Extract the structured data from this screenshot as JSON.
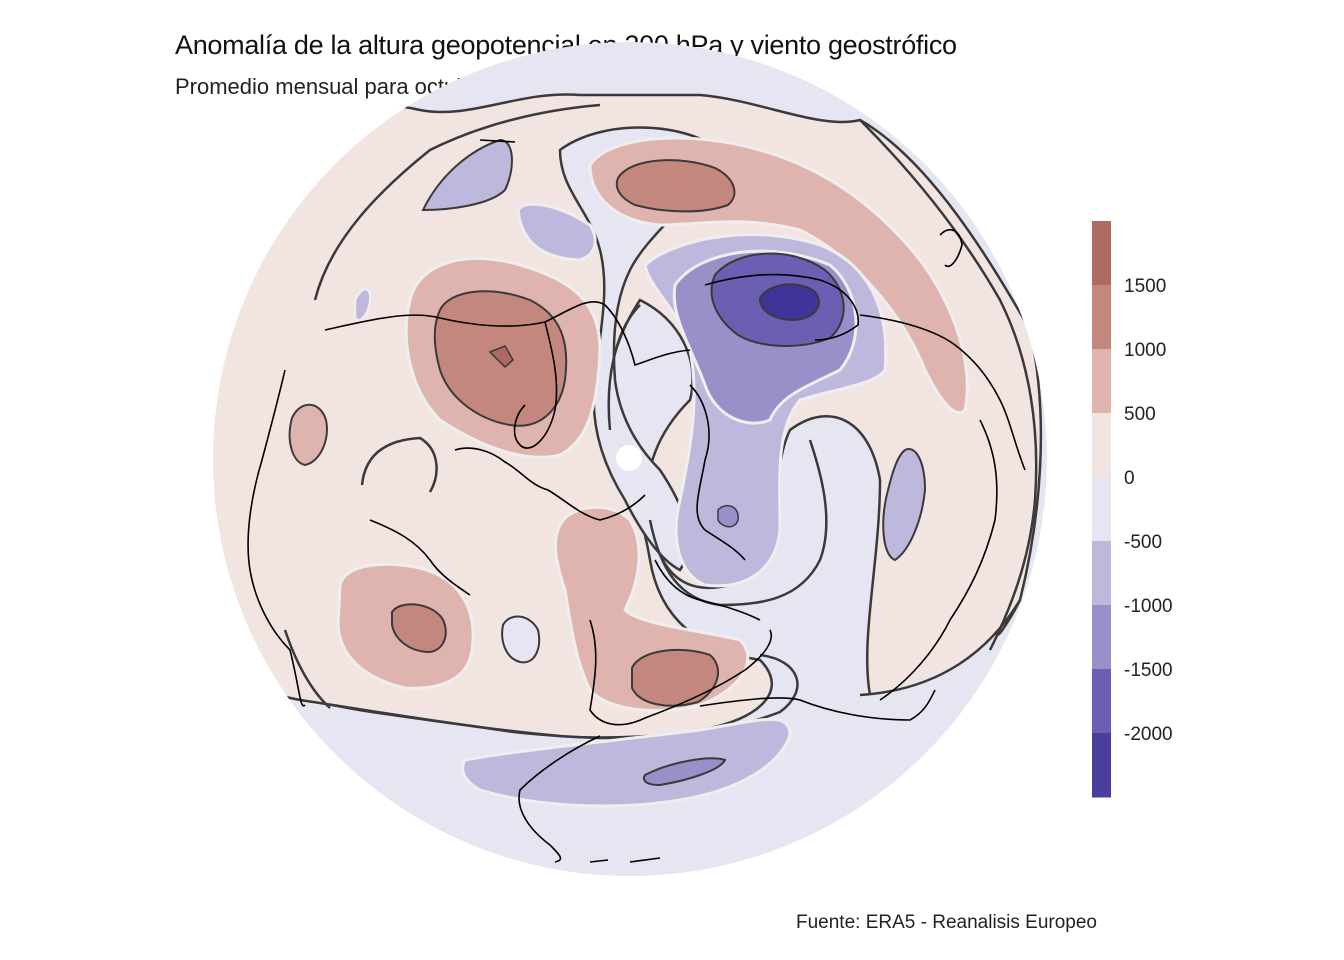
{
  "title": "Anomalía de la altura geopotencial en 200 hPa y viento geostrófico",
  "subtitle": "Promedio mensual para octubre de 2023",
  "caption": "Fuente: ERA5 - Reanalisis Europeo",
  "colorbar": {
    "ticks": [
      "1500",
      "1000",
      "500",
      "0",
      "-500",
      "-1000",
      "-1500",
      "-2000"
    ],
    "bins": [
      {
        "range": [
          1500,
          2000
        ],
        "color": "#ad6a62"
      },
      {
        "range": [
          1000,
          1500
        ],
        "color": "#c4877e"
      },
      {
        "range": [
          500,
          1000
        ],
        "color": "#dfb3ae"
      },
      {
        "range": [
          0,
          500
        ],
        "color": "#f2e4e1"
      },
      {
        "range": [
          -500,
          0
        ],
        "color": "#e6e6f2"
      },
      {
        "range": [
          -1000,
          -500
        ],
        "color": "#beb8dc"
      },
      {
        "range": [
          -1500,
          -1000
        ],
        "color": "#998fc9"
      },
      {
        "range": [
          -2000,
          -1500
        ],
        "color": "#6a5fb2"
      },
      {
        "range": [
          -2500,
          -2000
        ],
        "color": "#4a3f9c"
      }
    ]
  },
  "colors": {
    "background": "#e6e6f2",
    "positive_light": "#f2e4e1",
    "positive_mid": "#dfb3ae",
    "positive_strong": "#c4877e",
    "positive_max": "#ad6a62",
    "negative_light": "#beb8dc",
    "negative_mid": "#998fc9",
    "negative_strong": "#6a5fb2",
    "negative_max": "#3f3599",
    "coastline": "#000000",
    "contour": "#3a3a3a"
  },
  "projection": "north-polar-stereographic"
}
